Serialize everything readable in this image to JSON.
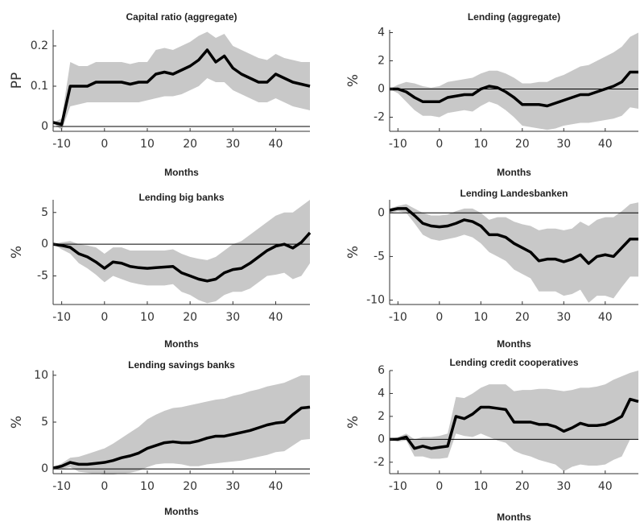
{
  "chart_data": [
    {
      "type": "line",
      "title": "Capital ratio (aggregate)",
      "xlabel": "Months",
      "ylabel": "PP",
      "x": [
        -12,
        -10,
        -8,
        -6,
        -4,
        -2,
        0,
        2,
        4,
        6,
        8,
        10,
        12,
        14,
        16,
        18,
        20,
        22,
        24,
        26,
        28,
        30,
        32,
        34,
        36,
        38,
        40,
        42,
        44,
        46,
        48
      ],
      "values": [
        0.01,
        0.005,
        0.1,
        0.1,
        0.1,
        0.11,
        0.11,
        0.11,
        0.11,
        0.105,
        0.11,
        0.11,
        0.13,
        0.135,
        0.13,
        0.14,
        0.15,
        0.165,
        0.19,
        0.16,
        0.175,
        0.145,
        0.13,
        0.12,
        0.11,
        0.11,
        0.13,
        0.12,
        0.11,
        0.105,
        0.1
      ],
      "lower": [
        0.01,
        -0.01,
        0.05,
        0.055,
        0.06,
        0.06,
        0.06,
        0.06,
        0.06,
        0.06,
        0.06,
        0.065,
        0.07,
        0.075,
        0.075,
        0.08,
        0.09,
        0.1,
        0.12,
        0.11,
        0.11,
        0.09,
        0.08,
        0.07,
        0.06,
        0.06,
        0.07,
        0.06,
        0.05,
        0.045,
        0.04
      ],
      "upper": [
        0.01,
        0.02,
        0.16,
        0.15,
        0.15,
        0.16,
        0.16,
        0.16,
        0.16,
        0.155,
        0.16,
        0.16,
        0.19,
        0.195,
        0.19,
        0.2,
        0.21,
        0.225,
        0.235,
        0.22,
        0.23,
        0.2,
        0.19,
        0.18,
        0.17,
        0.165,
        0.18,
        0.17,
        0.165,
        0.16,
        0.16
      ],
      "color": "#000000",
      "band_color": "#c8c8c8",
      "zero_line": true,
      "xlim": [
        -12,
        48
      ],
      "xticks": [
        -10,
        0,
        10,
        20,
        30,
        40
      ],
      "ylim": [
        -0.012,
        0.24
      ],
      "yticks": [
        0,
        0.1,
        0.2
      ]
    },
    {
      "type": "line",
      "title": "Lending (aggregate)",
      "xlabel": "Months",
      "ylabel": "%",
      "x": [
        -12,
        -10,
        -8,
        -6,
        -4,
        -2,
        0,
        2,
        4,
        6,
        8,
        10,
        12,
        14,
        16,
        18,
        20,
        22,
        24,
        26,
        28,
        30,
        32,
        34,
        36,
        38,
        40,
        42,
        44,
        46,
        48
      ],
      "values": [
        0,
        0,
        -0.2,
        -0.6,
        -0.9,
        -0.9,
        -0.9,
        -0.6,
        -0.5,
        -0.4,
        -0.4,
        0,
        0.2,
        0.1,
        -0.2,
        -0.6,
        -1.1,
        -1.1,
        -1.1,
        -1.2,
        -1.0,
        -0.8,
        -0.6,
        -0.4,
        -0.4,
        -0.2,
        0,
        0.2,
        0.5,
        1.2,
        1.2
      ],
      "lower": [
        0,
        -0.3,
        -0.9,
        -1.5,
        -1.9,
        -1.9,
        -2.0,
        -1.7,
        -1.6,
        -1.5,
        -1.6,
        -1.2,
        -0.9,
        -1.1,
        -1.5,
        -2.0,
        -2.6,
        -2.7,
        -2.8,
        -2.9,
        -2.8,
        -2.6,
        -2.5,
        -2.4,
        -2.4,
        -2.3,
        -2.2,
        -2.1,
        -1.9,
        -1.3,
        -1.4
      ],
      "upper": [
        0,
        0.3,
        0.5,
        0.4,
        0.2,
        0.1,
        0.2,
        0.5,
        0.6,
        0.7,
        0.8,
        1.1,
        1.3,
        1.3,
        1.1,
        0.8,
        0.4,
        0.4,
        0.5,
        0.5,
        0.8,
        1.0,
        1.3,
        1.6,
        1.7,
        2.0,
        2.3,
        2.6,
        3.0,
        3.7,
        4.0
      ],
      "color": "#000000",
      "band_color": "#c8c8c8",
      "zero_line": true,
      "xlim": [
        -12,
        48
      ],
      "xticks": [
        -10,
        0,
        10,
        20,
        30,
        40
      ],
      "ylim": [
        -3,
        4.2
      ],
      "yticks": [
        -2,
        0,
        2,
        4
      ]
    },
    {
      "type": "line",
      "title": "Lending big banks",
      "xlabel": "Months",
      "ylabel": "%",
      "x": [
        -12,
        -10,
        -8,
        -6,
        -4,
        -2,
        0,
        2,
        4,
        6,
        8,
        10,
        12,
        14,
        16,
        18,
        20,
        22,
        24,
        26,
        28,
        30,
        32,
        34,
        36,
        38,
        40,
        42,
        44,
        46,
        48
      ],
      "values": [
        0,
        -0.2,
        -0.5,
        -1.5,
        -2.0,
        -2.8,
        -3.8,
        -2.8,
        -3.0,
        -3.5,
        -3.7,
        -3.8,
        -3.7,
        -3.6,
        -3.5,
        -4.5,
        -5.0,
        -5.5,
        -5.8,
        -5.5,
        -4.5,
        -4.0,
        -3.8,
        -3.0,
        -2.0,
        -1.0,
        -0.3,
        0,
        -0.6,
        0.3,
        1.8
      ],
      "lower": [
        0,
        -0.8,
        -1.5,
        -3,
        -3.8,
        -4.8,
        -6,
        -5,
        -5.5,
        -6,
        -6.3,
        -6.5,
        -6.5,
        -6.5,
        -6.3,
        -7.5,
        -8,
        -8.8,
        -9.3,
        -9,
        -8,
        -7.5,
        -7.5,
        -7,
        -6,
        -5,
        -4.8,
        -4.5,
        -5.5,
        -5,
        -3
      ],
      "upper": [
        0,
        0.3,
        0.5,
        0,
        -0.2,
        -0.5,
        -1.5,
        -0.5,
        -0.5,
        -1,
        -1,
        -1,
        -1,
        -1,
        -0.8,
        -1.5,
        -2,
        -2.3,
        -2.5,
        -2,
        -1,
        0,
        0.5,
        1.5,
        2.5,
        3.5,
        4.5,
        5,
        5,
        6,
        7
      ],
      "color": "#000000",
      "band_color": "#c8c8c8",
      "zero_line": true,
      "xlim": [
        -12,
        48
      ],
      "xticks": [
        -10,
        0,
        10,
        20,
        30,
        40
      ],
      "ylim": [
        -9.5,
        7
      ],
      "yticks": [
        -5,
        0,
        5
      ]
    },
    {
      "type": "line",
      "title": "Lending Landesbanken",
      "xlabel": "Months",
      "ylabel": "%",
      "x": [
        -12,
        -10,
        -8,
        -6,
        -4,
        -2,
        0,
        2,
        4,
        6,
        8,
        10,
        12,
        14,
        16,
        18,
        20,
        22,
        24,
        26,
        28,
        30,
        32,
        34,
        36,
        38,
        40,
        42,
        44,
        46,
        48
      ],
      "values": [
        0.3,
        0.5,
        0.5,
        -0.3,
        -1.2,
        -1.5,
        -1.6,
        -1.5,
        -1.2,
        -0.8,
        -1.0,
        -1.5,
        -2.5,
        -2.5,
        -2.8,
        -3.5,
        -4.0,
        -4.5,
        -5.5,
        -5.3,
        -5.3,
        -5.6,
        -5.3,
        -4.8,
        -5.8,
        -5.0,
        -4.8,
        -5.0,
        -4.0,
        -3.0,
        -3.0
      ],
      "lower": [
        0,
        0.2,
        0,
        -1.2,
        -2.5,
        -3,
        -3.2,
        -3,
        -2.8,
        -2.5,
        -2.8,
        -3.5,
        -4.5,
        -5,
        -5.5,
        -6.5,
        -7,
        -7.5,
        -9,
        -9,
        -9,
        -9.5,
        -9.3,
        -8.8,
        -10.3,
        -9.5,
        -9.5,
        -9.8,
        -8.5,
        -7.3,
        -7.3
      ],
      "upper": [
        0.5,
        0.8,
        1,
        0.5,
        0,
        -0.3,
        -0.3,
        -0.2,
        0.2,
        0.5,
        0.5,
        0,
        -0.8,
        -0.5,
        -0.5,
        -1,
        -1.3,
        -1.5,
        -2,
        -1.8,
        -1.8,
        -2,
        -1.8,
        -1,
        -1.5,
        -0.8,
        -0.5,
        -0.5,
        0.2,
        1,
        1.2
      ],
      "color": "#000000",
      "band_color": "#c8c8c8",
      "zero_line": true,
      "xlim": [
        -12,
        48
      ],
      "xticks": [
        -10,
        0,
        10,
        20,
        30,
        40
      ],
      "ylim": [
        -10.5,
        1.5
      ],
      "yticks": [
        -10,
        -5,
        0
      ]
    },
    {
      "type": "line",
      "title": "Lending savings banks",
      "xlabel": "Months",
      "ylabel": "%",
      "x": [
        -12,
        -10,
        -8,
        -6,
        -4,
        -2,
        0,
        2,
        4,
        6,
        8,
        10,
        12,
        14,
        16,
        18,
        20,
        22,
        24,
        26,
        28,
        30,
        32,
        34,
        36,
        38,
        40,
        42,
        44,
        46,
        48
      ],
      "values": [
        0.1,
        0.3,
        0.7,
        0.5,
        0.5,
        0.6,
        0.7,
        0.9,
        1.2,
        1.4,
        1.7,
        2.2,
        2.5,
        2.8,
        2.9,
        2.8,
        2.8,
        3.0,
        3.3,
        3.5,
        3.5,
        3.7,
        3.9,
        4.1,
        4.4,
        4.7,
        4.9,
        5.0,
        5.8,
        6.5,
        6.6
      ],
      "lower": [
        0.1,
        0,
        0.2,
        -0.3,
        -0.4,
        -0.5,
        -0.6,
        -0.6,
        -0.5,
        -0.4,
        -0.2,
        0.2,
        0.5,
        0.6,
        0.6,
        0.5,
        0.3,
        0.3,
        0.5,
        0.6,
        0.7,
        0.8,
        0.9,
        1.1,
        1.3,
        1.5,
        1.8,
        1.9,
        2.5,
        3.1,
        3.2
      ],
      "upper": [
        0.1,
        0.6,
        1.2,
        1.3,
        1.6,
        1.9,
        2.2,
        2.7,
        3.3,
        3.9,
        4.5,
        5.3,
        5.8,
        6.2,
        6.5,
        6.6,
        6.8,
        7.0,
        7.2,
        7.4,
        7.5,
        7.8,
        8.0,
        8.3,
        8.5,
        8.8,
        9.0,
        9.2,
        9.6,
        10,
        10
      ],
      "color": "#000000",
      "band_color": "#c8c8c8",
      "zero_line": true,
      "xlim": [
        -12,
        48
      ],
      "xticks": [
        -10,
        0,
        10,
        20,
        30,
        40
      ],
      "ylim": [
        -0.5,
        10.5
      ],
      "yticks": [
        0,
        5,
        10
      ]
    },
    {
      "type": "line",
      "title": "Lending credit cooperatives",
      "xlabel": "Months",
      "ylabel": "%",
      "x": [
        -12,
        -10,
        -8,
        -6,
        -4,
        -2,
        0,
        2,
        4,
        6,
        8,
        10,
        12,
        14,
        16,
        18,
        20,
        22,
        24,
        26,
        28,
        30,
        32,
        34,
        36,
        38,
        40,
        42,
        44,
        46,
        48
      ],
      "values": [
        0,
        0,
        0.2,
        -0.8,
        -0.6,
        -0.8,
        -0.7,
        -0.6,
        2.0,
        1.8,
        2.2,
        2.8,
        2.8,
        2.7,
        2.6,
        1.5,
        1.5,
        1.5,
        1.3,
        1.3,
        1.1,
        0.7,
        1.0,
        1.4,
        1.2,
        1.2,
        1.3,
        1.6,
        2.0,
        3.5,
        3.3
      ],
      "lower": [
        0,
        -0.2,
        -0.1,
        -1.5,
        -1.5,
        -1.7,
        -1.7,
        -1.6,
        0.5,
        0.3,
        0.2,
        0.5,
        0.2,
        -0.1,
        -0.3,
        -1.0,
        -1.3,
        -1.5,
        -1.8,
        -2.0,
        -2.2,
        -2.8,
        -2.4,
        -2.2,
        -2.3,
        -2.3,
        -2.2,
        -1.8,
        -1.5,
        0,
        0
      ],
      "upper": [
        0,
        0.2,
        0.5,
        0,
        0.2,
        0.2,
        0.3,
        0.5,
        3.7,
        3.6,
        4.0,
        4.5,
        4.8,
        4.8,
        4.8,
        4.2,
        4.3,
        4.3,
        4.4,
        4.4,
        4.3,
        4.2,
        4.3,
        4.5,
        4.5,
        4.6,
        4.8,
        5.2,
        5.5,
        5.8,
        6
      ],
      "color": "#000000",
      "band_color": "#c8c8c8",
      "zero_line": true,
      "xlim": [
        -12,
        48
      ],
      "xticks": [
        -10,
        0,
        10,
        20,
        30,
        40
      ],
      "ylim": [
        -3,
        6
      ],
      "yticks": [
        -2,
        0,
        2,
        4,
        6
      ]
    }
  ]
}
